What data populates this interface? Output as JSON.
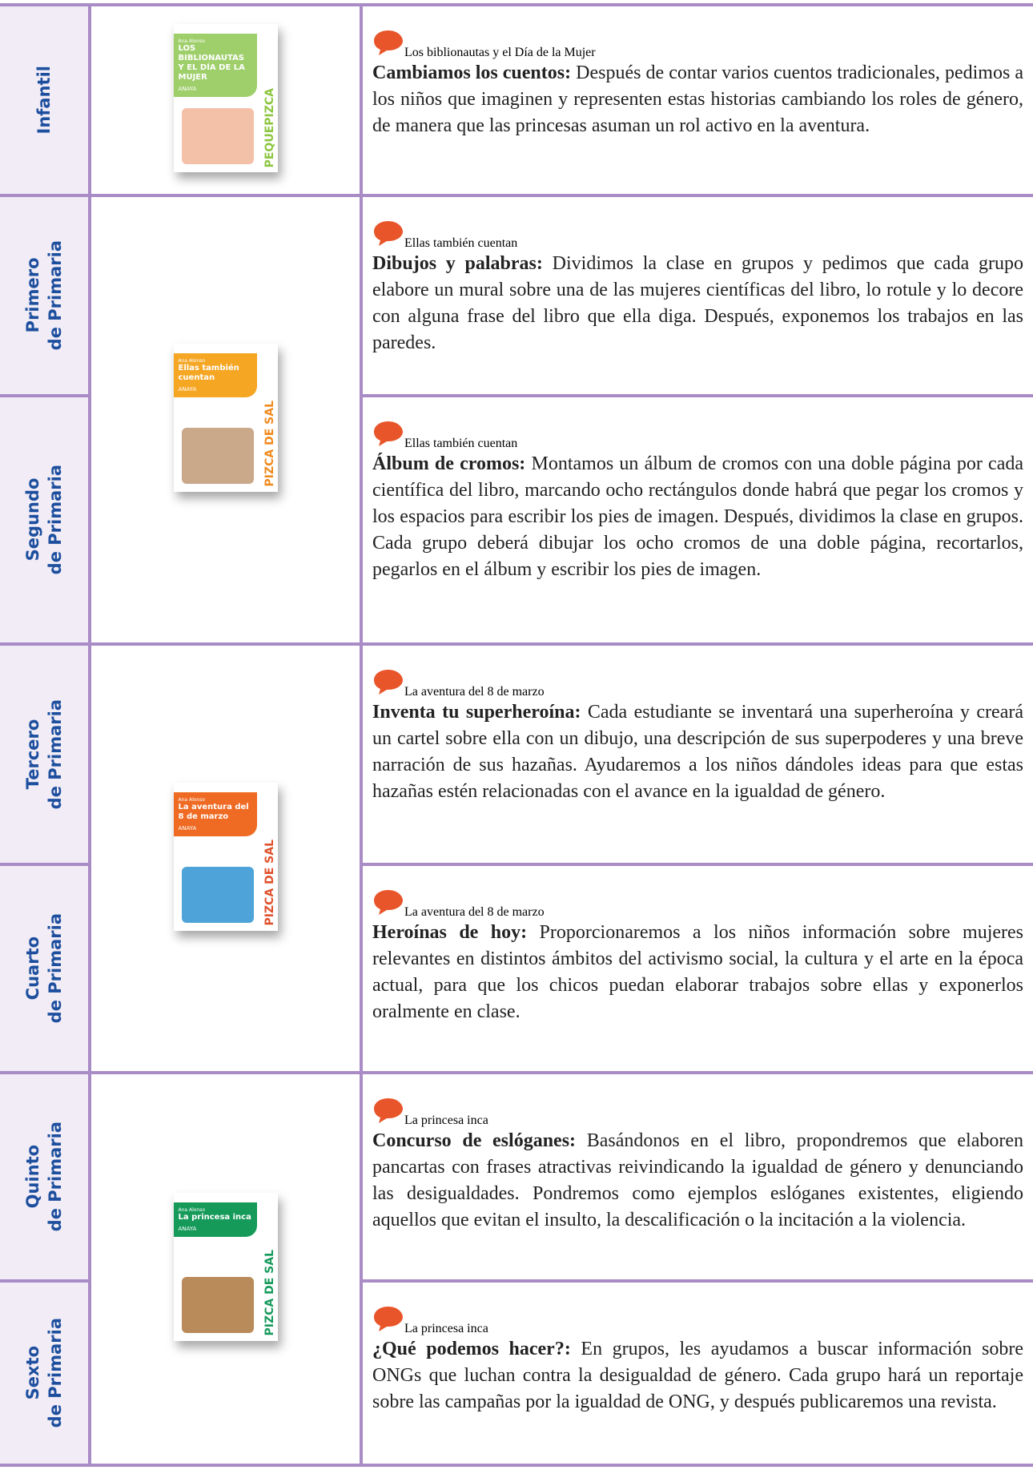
{
  "rows": [
    {
      "grade": [
        "Infantil"
      ],
      "book_title": "Los biblionautas y el Día de la Mujer",
      "activity_label": "Cambiamos los cuentos:",
      "activity_text": "Después de contar varios cuentos tradicionales, pedimos a los niños que imaginen y representen estas historias cambiando los roles de género, de manera que las princesas asuman un rol activo en la aventura."
    },
    {
      "grade": [
        "Primero",
        "de Primaria"
      ],
      "book_title": "Ellas también cuentan",
      "activity_label": "Dibujos y palabras:",
      "activity_text": "Dividimos la clase en grupos y pedimos que cada grupo elabore un mural sobre una de las mujeres científicas del libro, lo rotule y lo decore con alguna frase del libro que ella diga. Después, exponemos los trabajos en las paredes."
    },
    {
      "grade": [
        "Segundo",
        "de Primaria"
      ],
      "book_title": "Ellas también cuentan",
      "activity_label": "Álbum de cromos:",
      "activity_text": "Montamos un álbum de cromos con una doble página por cada científica del libro, marcando ocho rectángulos donde habrá que pegar los cromos y los espacios para escribir los pies de imagen. Después, dividimos la clase en grupos. Cada grupo deberá dibujar los ocho cromos de una doble página, recortarlos, pegarlos en el álbum y escribir los pies de imagen."
    },
    {
      "grade": [
        "Tercero",
        "de Primaria"
      ],
      "book_title": "La aventura del 8 de marzo",
      "activity_label": "Inventa tu superheroína:",
      "activity_text": "Cada estudiante se inventará una superheroína y creará un cartel sobre ella con un dibujo, una descripción de sus superpoderes y una breve narración de sus hazañas. Ayudaremos a los niños dándoles ideas para que estas hazañas estén relacionadas con el avance en la igualdad de género."
    },
    {
      "grade": [
        "Cuarto",
        "de Primaria"
      ],
      "book_title": "La aventura del 8 de marzo",
      "activity_label": "Heroínas de hoy:",
      "activity_text": "Proporcionaremos a los niños información sobre mujeres relevantes en distintos ámbitos del activismo social, la cultura y el arte en la época actual, para que los chicos puedan elaborar trabajos sobre ellas y exponerlos oralmente en clase."
    },
    {
      "grade": [
        "Quinto",
        "de Primaria"
      ],
      "book_title": "La princesa inca",
      "activity_label": "Concurso de eslóganes:",
      "activity_text": "Basándonos en el libro, propondremos que elaboren pancartas con frases atractivas reivindicando la igualdad de género y denunciando las desigualdades. Pondremos como ejemplos eslóganes existentes, eligiendo aquellos que evitan el insulto, la descalificación o la incitación a la violencia."
    },
    {
      "grade": [
        "Sexto",
        "de Primaria"
      ],
      "book_title": "La princesa inca",
      "activity_label": "¿Qué podemos hacer?:",
      "activity_text": "En grupos, les ayudamos a buscar información sobre ONGs que luchan contra la desigualdad de género. Cada grupo hará un reportaje sobre las campañas por la igualdad de ONG, y después publicaremos una revista."
    }
  ],
  "books": [
    {
      "author": "Ana Alonso",
      "title": "LOS BIBLIONAUTAS Y EL DÍA DE LA MUJER",
      "publisher": "ANAYA",
      "series": "PEQUEPIZCA"
    },
    {
      "author": "Ana Alonso",
      "title": "Ellas también cuentan",
      "publisher": "ANAYA",
      "series": "PIZCA DE SAL"
    },
    {
      "author": "Ana Alonso",
      "title": "La aventura del 8 de marzo",
      "publisher": "ANAYA",
      "series": "PIZCA DE SAL"
    },
    {
      "author": "Ana Alonso",
      "title": "La princesa inca",
      "publisher": "ANAYA",
      "series": "PIZCA DE SAL"
    }
  ]
}
